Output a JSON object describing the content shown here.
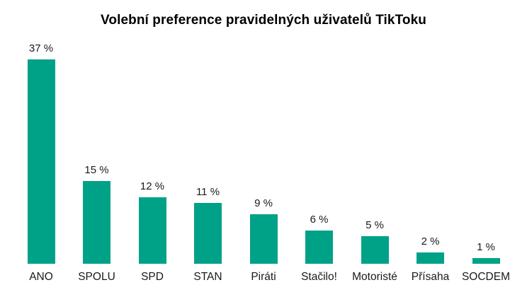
{
  "title": "Volební preference pravidelných uživatelů TikToku",
  "colors": {
    "bar": "#00A287",
    "text": "#1a1a1a",
    "title": "#000000",
    "background": "#ffffff"
  },
  "chart_data": {
    "type": "bar",
    "title": "Volební preference pravidelných uživatelů TikToku",
    "categories": [
      "ANO",
      "SPOLU",
      "SPD",
      "STAN",
      "Piráti",
      "Stačilo!",
      "Motoristé",
      "Přísaha",
      "SOCDEM"
    ],
    "values": [
      37,
      15,
      12,
      11,
      9,
      6,
      5,
      2,
      1
    ],
    "value_labels": [
      "37 %",
      "15 %",
      "12 %",
      "11 %",
      "9 %",
      "6 %",
      "5 %",
      "2 %",
      "1 %"
    ],
    "unit": "%",
    "xlabel": "",
    "ylabel": "",
    "ylim": [
      0,
      37
    ],
    "gridlines": false,
    "legend": false,
    "y_axis_visible": false,
    "x_axis_line_visible": false,
    "bar_gap_ratio": 0.5
  }
}
